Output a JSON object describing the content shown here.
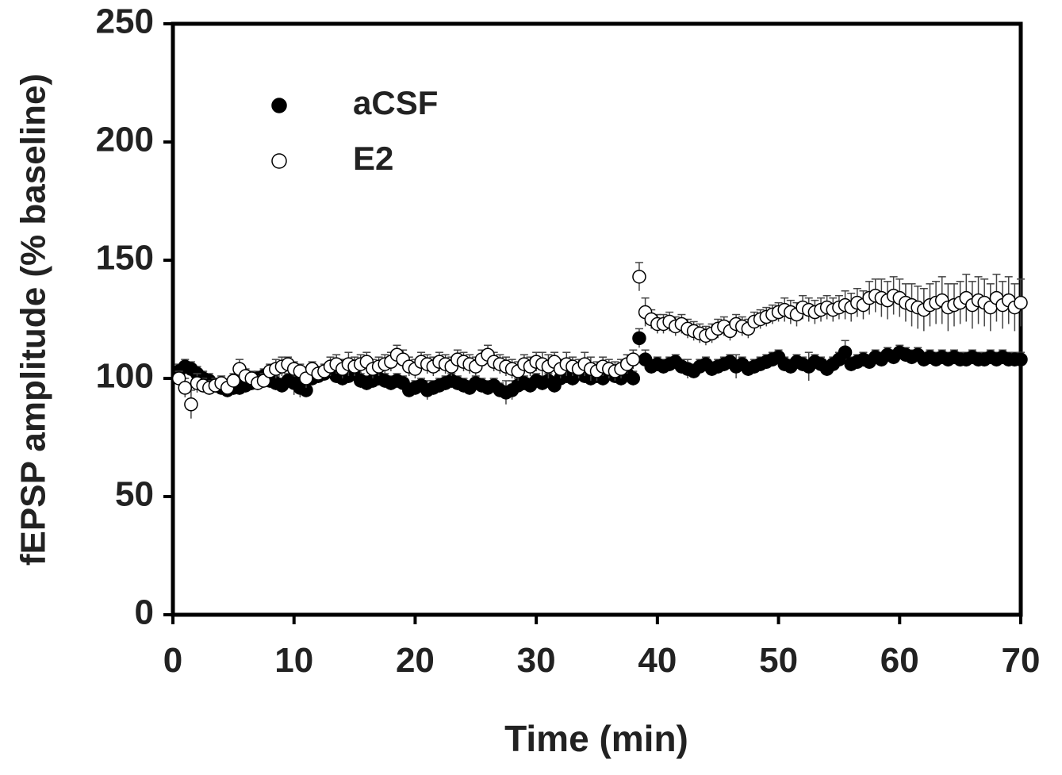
{
  "chart_data": {
    "type": "scatter",
    "xlabel": "Time (min)",
    "ylabel": "fEPSP amplitude (% baseline)",
    "xlim": [
      0,
      70
    ],
    "ylim": [
      0,
      250
    ],
    "xticks": [
      0,
      10,
      20,
      30,
      40,
      50,
      60,
      70
    ],
    "yticks": [
      0,
      50,
      100,
      150,
      200,
      250
    ],
    "x": [
      0.5,
      1,
      1.5,
      2,
      2.5,
      3,
      3.5,
      4,
      4.5,
      5,
      5.5,
      6,
      6.5,
      7,
      7.5,
      8,
      8.5,
      9,
      9.5,
      10,
      10.5,
      11,
      11.5,
      12,
      12.5,
      13,
      13.5,
      14,
      14.5,
      15,
      15.5,
      16,
      16.5,
      17,
      17.5,
      18,
      18.5,
      19,
      19.5,
      20,
      20.5,
      21,
      21.5,
      22,
      22.5,
      23,
      23.5,
      24,
      24.5,
      25,
      25.5,
      26,
      26.5,
      27,
      27.5,
      28,
      28.5,
      29,
      29.5,
      30,
      30.5,
      31,
      31.5,
      32,
      32.5,
      33,
      33.5,
      34,
      34.5,
      35,
      35.5,
      36,
      36.5,
      37,
      37.5,
      38,
      38.5,
      39,
      39.5,
      40,
      40.5,
      41,
      41.5,
      42,
      42.5,
      43,
      43.5,
      44,
      44.5,
      45,
      45.5,
      46,
      46.5,
      47,
      47.5,
      48,
      48.5,
      49,
      49.5,
      50,
      50.5,
      51,
      51.5,
      52,
      52.5,
      53,
      53.5,
      54,
      54.5,
      55,
      55.5,
      56,
      56.5,
      57,
      57.5,
      58,
      58.5,
      59,
      59.5,
      60,
      60.5,
      61,
      61.5,
      62,
      62.5,
      63,
      63.5,
      64,
      64.5,
      65,
      65.5,
      66,
      66.5,
      67,
      67.5,
      68,
      68.5,
      69,
      69.5,
      70
    ],
    "series": [
      {
        "name": "aCSF",
        "color": "#000000",
        "fill": "#000000",
        "values": [
          103,
          105,
          104,
          102,
          100,
          99,
          97,
          96,
          95,
          96,
          96,
          97,
          98,
          100,
          101,
          99,
          98,
          97,
          99,
          98,
          96,
          95,
          100,
          101,
          102,
          103,
          101,
          100,
          101,
          102,
          99,
          98,
          99,
          100,
          99,
          98,
          99,
          98,
          95,
          96,
          97,
          95,
          96,
          97,
          98,
          99,
          98,
          97,
          96,
          98,
          97,
          96,
          97,
          95,
          94,
          95,
          97,
          98,
          97,
          99,
          98,
          99,
          97,
          100,
          101,
          100,
          102,
          101,
          100,
          101,
          100,
          102,
          101,
          100,
          102,
          100,
          117,
          108,
          105,
          106,
          105,
          106,
          107,
          105,
          104,
          103,
          105,
          106,
          104,
          105,
          106,
          107,
          105,
          106,
          104,
          105,
          106,
          107,
          108,
          109,
          106,
          105,
          107,
          106,
          105,
          107,
          106,
          104,
          106,
          108,
          111,
          106,
          107,
          108,
          107,
          109,
          108,
          110,
          109,
          111,
          110,
          109,
          110,
          108,
          109,
          108,
          109,
          108,
          109,
          108,
          108,
          109,
          108,
          108,
          109,
          108,
          109,
          108,
          108,
          108
        ],
        "errors": [
          3,
          3,
          3,
          3,
          3,
          3,
          3,
          3,
          3,
          3,
          3,
          3,
          3,
          3,
          3,
          3,
          3,
          3,
          3,
          5,
          4,
          3,
          3,
          3,
          3,
          3,
          3,
          3,
          3,
          3,
          3,
          3,
          3,
          3,
          3,
          3,
          3,
          3,
          3,
          3,
          3,
          4,
          3,
          3,
          3,
          3,
          3,
          3,
          3,
          3,
          3,
          3,
          3,
          3,
          5,
          4,
          3,
          3,
          3,
          3,
          3,
          3,
          3,
          3,
          3,
          3,
          3,
          3,
          3,
          3,
          3,
          3,
          3,
          3,
          3,
          3,
          4,
          4,
          3,
          3,
          3,
          3,
          3,
          3,
          4,
          3,
          3,
          3,
          3,
          3,
          3,
          3,
          5,
          3,
          3,
          3,
          3,
          3,
          3,
          3,
          3,
          3,
          3,
          3,
          6,
          3,
          3,
          3,
          3,
          3,
          5,
          3,
          3,
          3,
          3,
          3,
          3,
          3,
          3,
          3,
          3,
          3,
          3,
          3,
          3,
          3,
          3,
          3,
          3,
          3,
          3,
          3,
          3,
          3,
          3,
          3,
          3,
          3,
          3,
          3
        ]
      },
      {
        "name": "E2",
        "color": "#000000",
        "fill": "#ffffff",
        "values": [
          100,
          96,
          89,
          98,
          97,
          96,
          97,
          98,
          96,
          99,
          104,
          101,
          100,
          98,
          99,
          103,
          104,
          105,
          106,
          104,
          103,
          100,
          104,
          102,
          103,
          105,
          106,
          104,
          106,
          105,
          106,
          107,
          104,
          105,
          106,
          107,
          110,
          108,
          105,
          104,
          107,
          106,
          105,
          107,
          106,
          105,
          108,
          107,
          106,
          105,
          108,
          110,
          107,
          106,
          105,
          104,
          103,
          106,
          105,
          107,
          106,
          105,
          107,
          104,
          106,
          105,
          104,
          106,
          104,
          103,
          105,
          104,
          103,
          104,
          106,
          108,
          143,
          128,
          125,
          123,
          123,
          124,
          122,
          123,
          121,
          120,
          119,
          118,
          119,
          121,
          122,
          120,
          123,
          122,
          121,
          124,
          125,
          126,
          127,
          128,
          129,
          128,
          127,
          130,
          129,
          128,
          129,
          130,
          129,
          130,
          131,
          130,
          132,
          131,
          134,
          135,
          134,
          133,
          135,
          134,
          132,
          131,
          130,
          129,
          131,
          132,
          133,
          130,
          131,
          132,
          134,
          131,
          133,
          132,
          130,
          134,
          131,
          133,
          130,
          132
        ],
        "errors": [
          3,
          4,
          6,
          4,
          3,
          3,
          3,
          3,
          3,
          3,
          4,
          3,
          3,
          3,
          3,
          3,
          4,
          4,
          3,
          3,
          3,
          4,
          3,
          3,
          3,
          4,
          4,
          4,
          5,
          4,
          4,
          4,
          4,
          4,
          4,
          4,
          4,
          4,
          4,
          4,
          4,
          4,
          4,
          4,
          4,
          4,
          4,
          4,
          4,
          4,
          4,
          4,
          4,
          4,
          4,
          4,
          4,
          4,
          4,
          4,
          5,
          5,
          4,
          4,
          5,
          4,
          4,
          5,
          5,
          4,
          4,
          4,
          4,
          4,
          4,
          4,
          6,
          6,
          4,
          4,
          4,
          4,
          4,
          4,
          4,
          4,
          4,
          4,
          4,
          4,
          4,
          4,
          4,
          4,
          4,
          4,
          4,
          4,
          4,
          4,
          5,
          5,
          5,
          5,
          5,
          5,
          5,
          5,
          5,
          5,
          6,
          6,
          6,
          6,
          7,
          7,
          8,
          8,
          8,
          8,
          8,
          9,
          9,
          9,
          9,
          9,
          10,
          10,
          9,
          9,
          10,
          10,
          10,
          10,
          10,
          10,
          10,
          10,
          10,
          10
        ]
      }
    ]
  }
}
